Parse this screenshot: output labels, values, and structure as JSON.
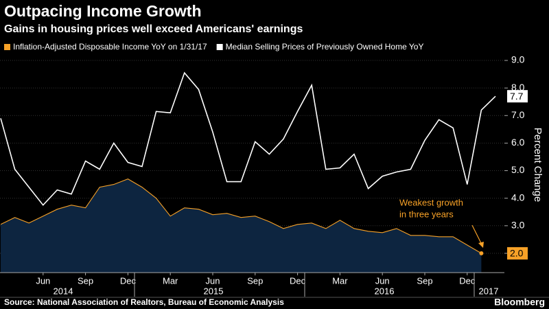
{
  "chart_data": {
    "type": "line",
    "title": "Outpacing Income Growth",
    "subtitle": "Gains in housing prices well exceed Americans' earnings",
    "y_label": "Percent Change",
    "source": "Source: National Association of Realtors, Bureau of Economic Analysis",
    "brand": "Bloomberg",
    "annotation": [
      "Weakest growth",
      "in three years"
    ],
    "categories": [
      null,
      null,
      null,
      "Jun",
      null,
      null,
      "Sep",
      null,
      null,
      "Dec",
      null,
      null,
      "Mar",
      null,
      null,
      "Jun",
      null,
      null,
      "Sep",
      null,
      null,
      "Dec",
      null,
      null,
      "Mar",
      null,
      null,
      "Jun",
      null,
      null,
      "Sep",
      null,
      null,
      "Dec",
      null,
      null
    ],
    "years": [
      "2014",
      "2015",
      "2016",
      "2017"
    ],
    "ylim": [
      1.3,
      9.2
    ],
    "yticks": [
      {
        "value": 2,
        "label": "2.0"
      },
      {
        "value": 3,
        "label": "3.0"
      },
      {
        "value": 4,
        "label": "4.0"
      },
      {
        "value": 5,
        "label": "5.0"
      },
      {
        "value": 6,
        "label": "6.0"
      },
      {
        "value": 7,
        "label": "7.0"
      },
      {
        "value": 8,
        "label": "8.0"
      },
      {
        "value": 9,
        "label": "9.0"
      }
    ],
    "grid": true,
    "series": [
      {
        "name": "Inflation-Adjusted Disposable Income YoY on 1/31/17",
        "color": "#f7a127",
        "area_color": "#0d2540",
        "values": [
          3.05,
          3.3,
          3.1,
          3.35,
          3.6,
          3.75,
          3.65,
          4.4,
          4.5,
          4.7,
          4.4,
          4.0,
          3.35,
          3.65,
          3.6,
          3.4,
          3.45,
          3.3,
          3.35,
          3.15,
          2.9,
          3.05,
          3.1,
          2.9,
          3.2,
          2.9,
          2.8,
          2.75,
          2.9,
          2.65,
          2.65,
          2.6,
          2.6,
          2.3,
          2.0,
          null
        ],
        "value_labels": [
          null,
          null,
          null,
          null,
          null,
          null,
          null,
          null,
          null,
          null,
          null,
          null,
          null,
          null,
          null,
          null,
          null,
          null,
          null,
          null,
          null,
          null,
          null,
          null,
          null,
          null,
          null,
          null,
          null,
          null,
          null,
          null,
          null,
          null,
          "2.0",
          null
        ]
      },
      {
        "name": "Median Selling Prices of Previously Owned Home YoY",
        "color": "#ffffff",
        "values": [
          6.9,
          5.05,
          4.4,
          3.75,
          4.3,
          4.15,
          5.35,
          5.05,
          6.0,
          5.3,
          5.15,
          7.15,
          7.1,
          8.55,
          7.95,
          6.4,
          4.6,
          4.6,
          6.05,
          5.6,
          6.15,
          7.15,
          8.1,
          5.05,
          5.1,
          5.6,
          4.35,
          4.8,
          4.95,
          5.05,
          6.1,
          6.85,
          6.55,
          4.5,
          7.2,
          7.7
        ],
        "value_labels": [
          null,
          null,
          null,
          null,
          null,
          null,
          null,
          null,
          null,
          null,
          null,
          null,
          null,
          null,
          null,
          null,
          null,
          null,
          null,
          null,
          null,
          null,
          null,
          null,
          null,
          null,
          null,
          null,
          null,
          null,
          null,
          null,
          null,
          null,
          null,
          "7.7"
        ]
      }
    ]
  }
}
